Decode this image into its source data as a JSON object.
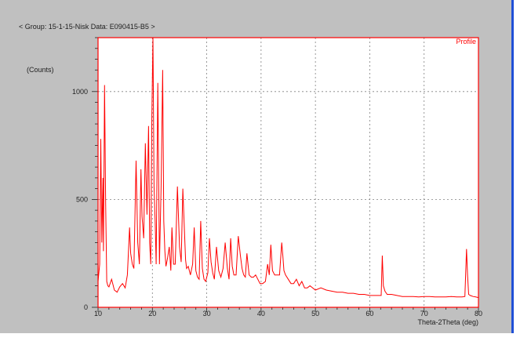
{
  "header": {
    "text": "< Group: 15-1-15-Nisk   Data: E090415-B5 >"
  },
  "colors": {
    "panel": "#c0c0c0",
    "plot_bg": "#ffffff",
    "series": "#ff0000",
    "grid": "#808080",
    "frame": "#ff0000"
  },
  "chart_data": {
    "type": "line",
    "title": "",
    "xlabel": "Theta-2Theta (deg)",
    "ylabel": "(Counts)",
    "xlim": [
      10,
      80
    ],
    "ylim": [
      0,
      1250
    ],
    "x_ticks": [
      "10",
      "20",
      "30",
      "40",
      "50",
      "60",
      "70",
      "80"
    ],
    "y_ticks": [
      "0",
      "500",
      "1000"
    ],
    "grid": true,
    "legend": "top-right",
    "series": [
      {
        "name": "Profile",
        "x": [
          10.0,
          10.3,
          10.5,
          10.7,
          10.9,
          11.0,
          11.2,
          11.4,
          11.6,
          11.8,
          12.0,
          12.5,
          13.0,
          13.5,
          14.0,
          14.5,
          15.0,
          15.4,
          15.8,
          16.0,
          16.3,
          16.6,
          17.0,
          17.3,
          17.6,
          17.9,
          18.1,
          18.4,
          18.7,
          19.0,
          19.3,
          19.5,
          19.7,
          19.9,
          20.1,
          20.3,
          20.5,
          20.7,
          21.0,
          21.3,
          21.6,
          21.9,
          22.1,
          22.3,
          22.5,
          22.8,
          23.1,
          23.4,
          23.6,
          23.9,
          24.2,
          24.6,
          25.0,
          25.3,
          25.6,
          25.9,
          26.1,
          26.3,
          26.6,
          27.0,
          27.4,
          27.7,
          28.0,
          28.3,
          28.6,
          28.9,
          29.2,
          29.5,
          29.8,
          30.2,
          30.5,
          30.8,
          31.1,
          31.4,
          31.8,
          32.2,
          32.6,
          33.0,
          33.4,
          33.8,
          34.1,
          34.4,
          34.7,
          35.0,
          35.4,
          35.8,
          36.2,
          36.5,
          36.8,
          37.1,
          37.4,
          37.8,
          38.2,
          38.6,
          39.0,
          39.4,
          39.8,
          40.3,
          40.8,
          41.2,
          41.5,
          41.8,
          42.1,
          42.5,
          43.0,
          43.4,
          43.8,
          44.0,
          44.2,
          44.5,
          45.0,
          45.5,
          46.0,
          46.5,
          47.0,
          47.5,
          48.0,
          48.5,
          49.0,
          50.0,
          51.0,
          52.0,
          53.0,
          54.0,
          55.0,
          56.0,
          57.0,
          58.0,
          59.0,
          60.0,
          61.0,
          61.8,
          62.1,
          62.3,
          62.5,
          62.8,
          63.2,
          64.0,
          65.0,
          66.0,
          67.0,
          68.0,
          69.0,
          70.0,
          71.0,
          72.0,
          73.0,
          74.0,
          75.0,
          76.0,
          77.0,
          77.5,
          77.8,
          78.0,
          78.2,
          78.5,
          79.0,
          79.5,
          80.0
        ],
        "values": [
          120,
          200,
          780,
          300,
          600,
          260,
          1030,
          480,
          120,
          100,
          95,
          130,
          80,
          70,
          95,
          110,
          90,
          150,
          370,
          250,
          200,
          180,
          680,
          300,
          200,
          640,
          420,
          320,
          760,
          430,
          840,
          300,
          200,
          880,
          1250,
          560,
          400,
          200,
          1040,
          200,
          560,
          1100,
          400,
          260,
          190,
          230,
          280,
          170,
          370,
          200,
          200,
          560,
          280,
          210,
          550,
          350,
          220,
          180,
          190,
          150,
          200,
          370,
          170,
          140,
          130,
          400,
          180,
          130,
          120,
          160,
          320,
          210,
          160,
          130,
          280,
          170,
          140,
          180,
          300,
          180,
          130,
          320,
          190,
          150,
          150,
          330,
          240,
          180,
          150,
          140,
          250,
          150,
          140,
          140,
          150,
          130,
          110,
          110,
          120,
          200,
          150,
          290,
          170,
          150,
          150,
          150,
          300,
          240,
          170,
          150,
          130,
          110,
          110,
          130,
          100,
          120,
          90,
          90,
          100,
          80,
          90,
          80,
          75,
          70,
          70,
          65,
          65,
          60,
          60,
          55,
          55,
          55,
          55,
          240,
          100,
          75,
          60,
          60,
          55,
          50,
          50,
          50,
          48,
          50,
          50,
          48,
          48,
          48,
          50,
          48,
          48,
          50,
          270,
          150,
          60,
          55,
          50,
          48,
          45
        ]
      }
    ]
  }
}
